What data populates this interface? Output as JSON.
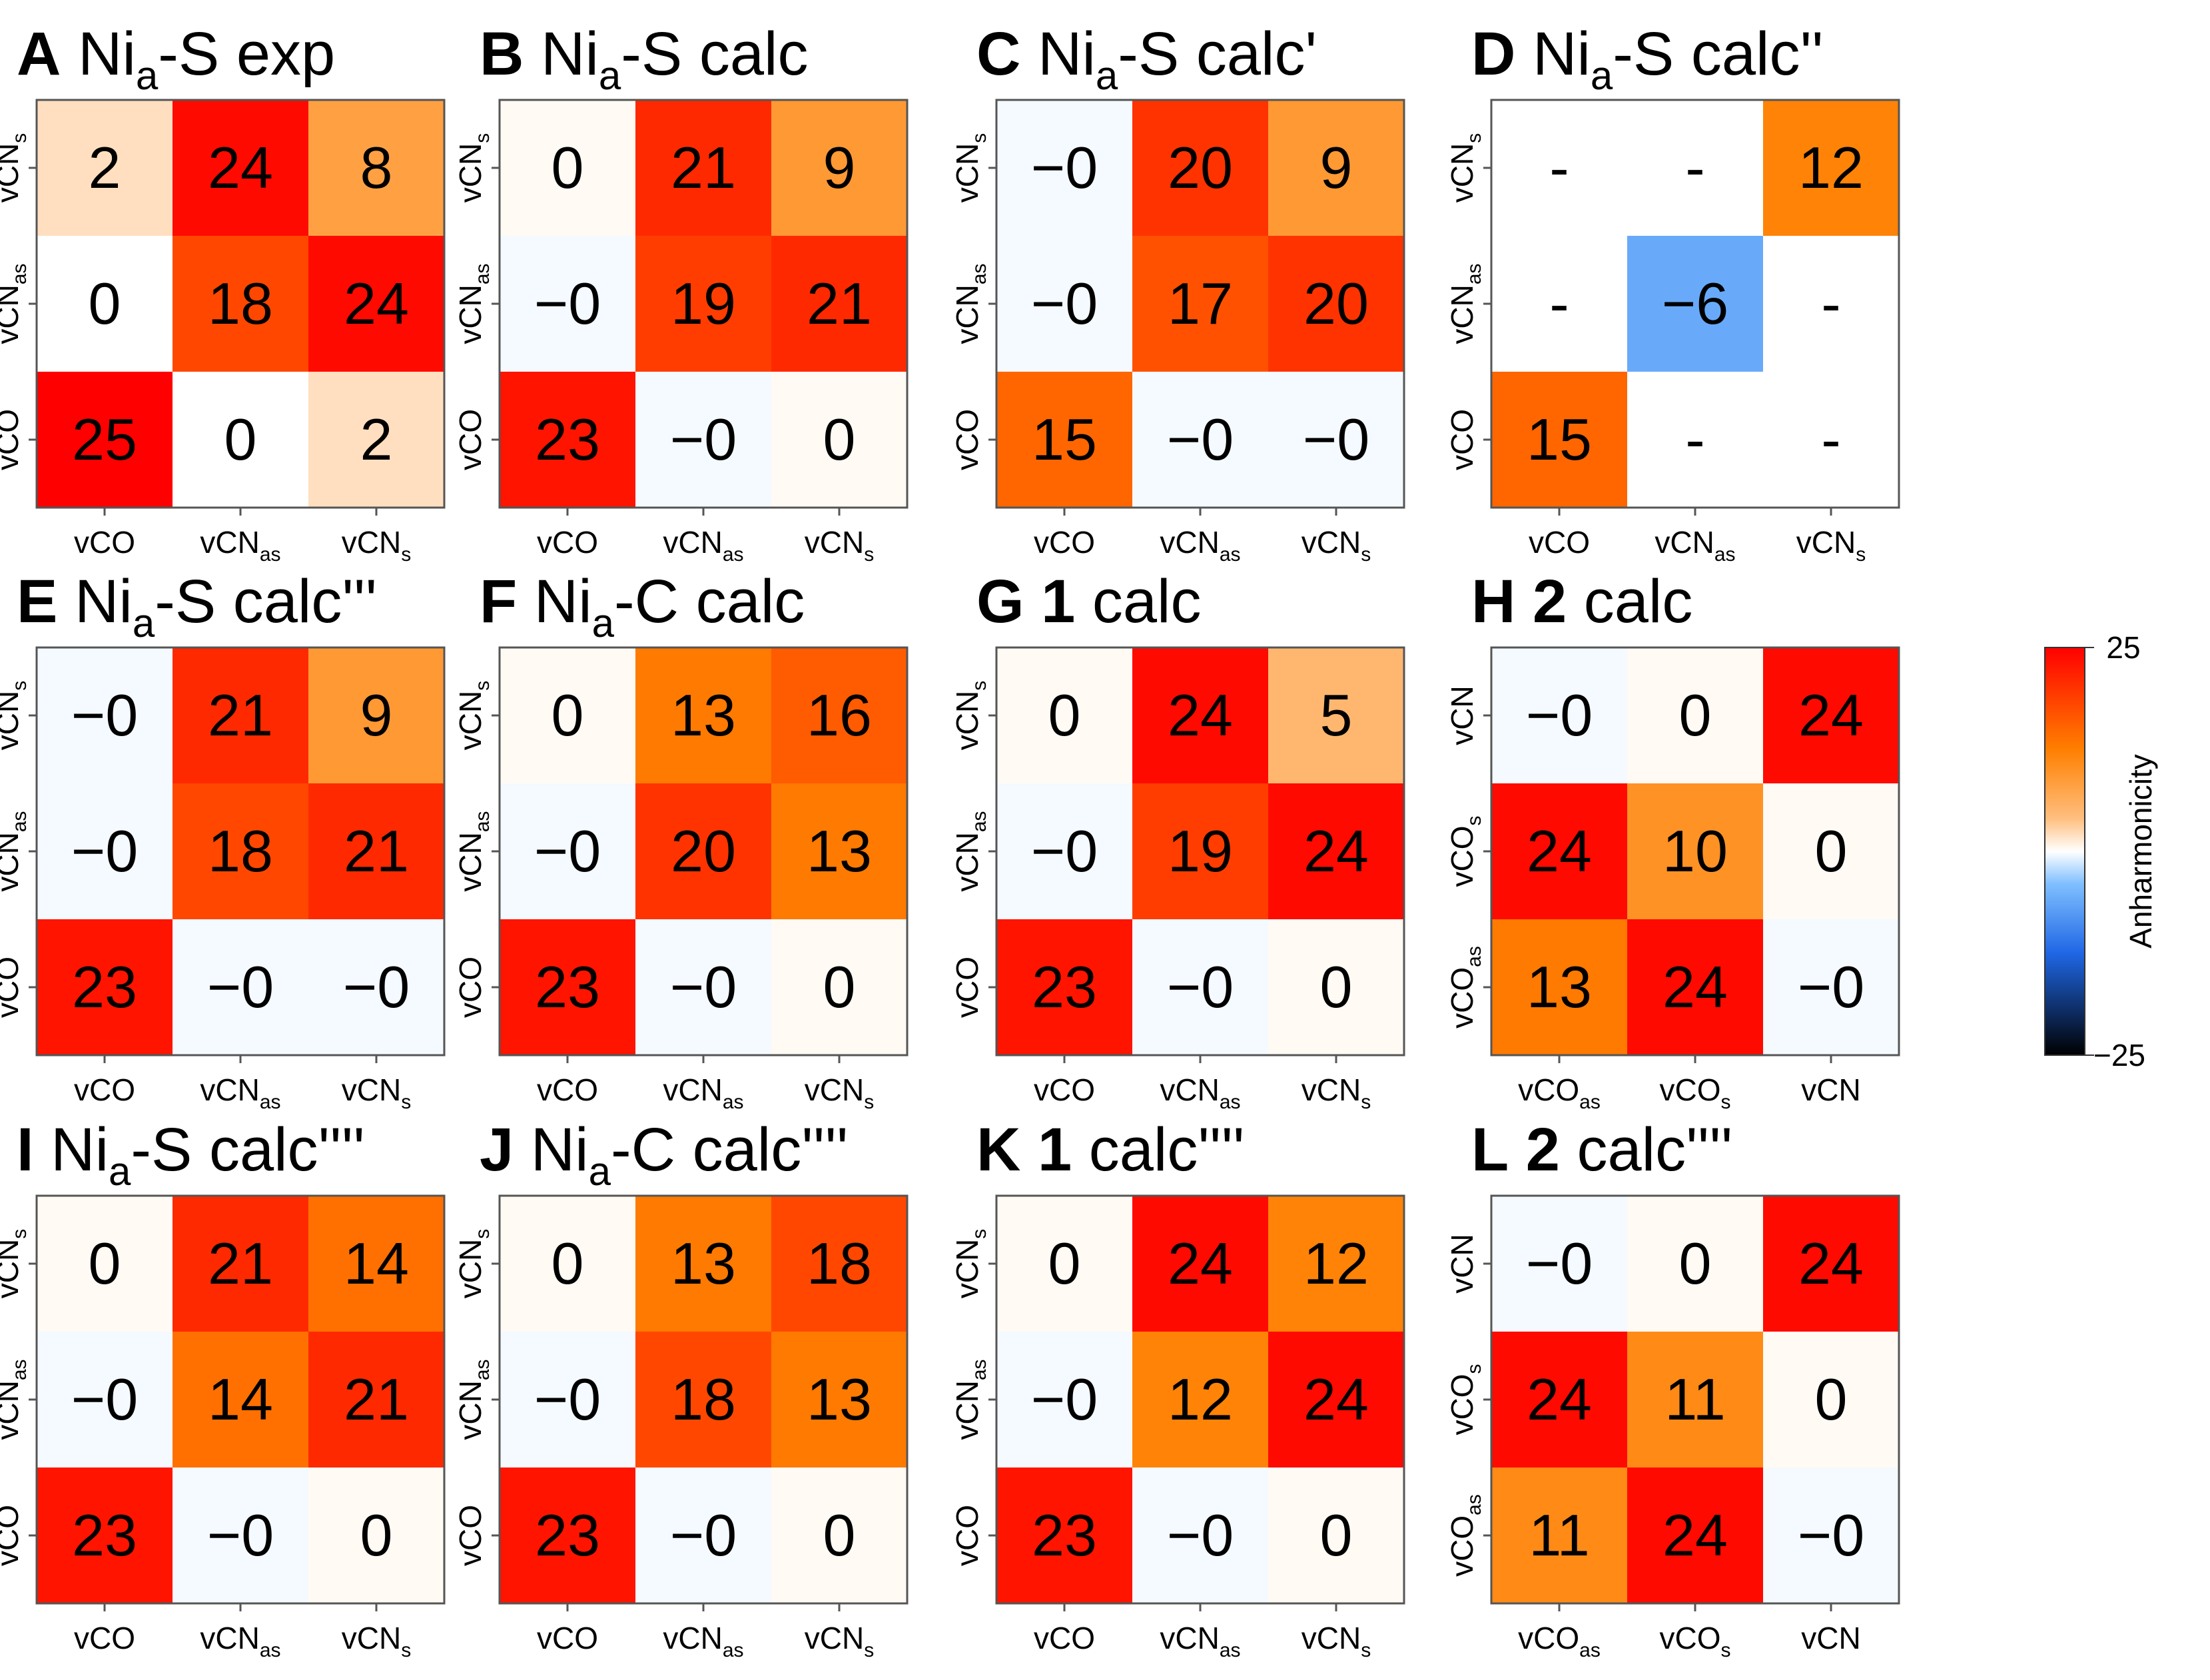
{
  "colorbar": {
    "label": "Anharmonicity",
    "max_label": "25",
    "min_label": "−25",
    "range": [
      -25,
      25
    ],
    "colors": {
      "low": "#000000",
      "mid_low": "#1f66e5",
      "mid_low2": "#7fbfff",
      "center": "#ffffff",
      "mid_high2": "#ffbf7f",
      "mid_high": "#ff7f00",
      "high": "#ff0000"
    }
  },
  "chart_data": [
    {
      "type": "heatmap",
      "letter": "A",
      "title_main": "Ni",
      "title_sub": "a",
      "title_rest": "-S exp",
      "x_labels": [
        [
          "vCO",
          ""
        ],
        [
          "vCN",
          "as"
        ],
        [
          "vCN",
          "s"
        ]
      ],
      "y_labels": [
        [
          "vCO",
          ""
        ],
        [
          "vCN",
          "as"
        ],
        [
          "vCN",
          "s"
        ]
      ],
      "cells": [
        [
          25,
          0,
          2
        ],
        [
          0,
          18,
          24
        ],
        [
          2,
          24,
          8
        ]
      ],
      "text": [
        [
          "25",
          "0",
          "2"
        ],
        [
          "0",
          "18",
          "24"
        ],
        [
          "2",
          "24",
          "8"
        ]
      ]
    },
    {
      "type": "heatmap",
      "letter": "B",
      "title_main": "Ni",
      "title_sub": "a",
      "title_rest": "-S calc",
      "x_labels": [
        [
          "vCO",
          ""
        ],
        [
          "vCN",
          "as"
        ],
        [
          "vCN",
          "s"
        ]
      ],
      "y_labels": [
        [
          "vCO",
          ""
        ],
        [
          "vCN",
          "as"
        ],
        [
          "vCN",
          "s"
        ]
      ],
      "cells": [
        [
          23,
          -0.3,
          0.3
        ],
        [
          -0.3,
          19,
          21
        ],
        [
          0.3,
          21,
          9
        ]
      ],
      "text": [
        [
          "23",
          "−0",
          "0"
        ],
        [
          "−0",
          "19",
          "21"
        ],
        [
          "0",
          "21",
          "9"
        ]
      ]
    },
    {
      "type": "heatmap",
      "letter": "C",
      "title_main": "Ni",
      "title_sub": "a",
      "title_rest": "-S calc'",
      "x_labels": [
        [
          "vCO",
          ""
        ],
        [
          "vCN",
          "as"
        ],
        [
          "vCN",
          "s"
        ]
      ],
      "y_labels": [
        [
          "vCO",
          ""
        ],
        [
          "vCN",
          "as"
        ],
        [
          "vCN",
          "s"
        ]
      ],
      "cells": [
        [
          15,
          -0.3,
          -0.3
        ],
        [
          -0.3,
          17,
          20
        ],
        [
          -0.3,
          20,
          9
        ]
      ],
      "text": [
        [
          "15",
          "−0",
          "−0"
        ],
        [
          "−0",
          "17",
          "20"
        ],
        [
          "−0",
          "20",
          "9"
        ]
      ]
    },
    {
      "type": "heatmap",
      "letter": "D",
      "title_main": "Ni",
      "title_sub": "a",
      "title_rest": "-S calc''",
      "x_labels": [
        [
          "vCO",
          ""
        ],
        [
          "vCN",
          "as"
        ],
        [
          "vCN",
          "s"
        ]
      ],
      "y_labels": [
        [
          "vCO",
          ""
        ],
        [
          "vCN",
          "as"
        ],
        [
          "vCN",
          "s"
        ]
      ],
      "cells": [
        [
          15,
          null,
          null
        ],
        [
          null,
          -6,
          null
        ],
        [
          null,
          null,
          12
        ]
      ],
      "text": [
        [
          "15",
          "-",
          "-"
        ],
        [
          "-",
          "−6",
          "-"
        ],
        [
          "-",
          "-",
          "12"
        ]
      ]
    },
    {
      "type": "heatmap",
      "letter": "E",
      "title_main": "Ni",
      "title_sub": "a",
      "title_rest": "-S calc'''",
      "x_labels": [
        [
          "vCO",
          ""
        ],
        [
          "vCN",
          "as"
        ],
        [
          "vCN",
          "s"
        ]
      ],
      "y_labels": [
        [
          "vCO",
          ""
        ],
        [
          "vCN",
          "as"
        ],
        [
          "vCN",
          "s"
        ]
      ],
      "cells": [
        [
          23,
          -0.3,
          -0.3
        ],
        [
          -0.3,
          18,
          21
        ],
        [
          -0.3,
          21,
          9
        ]
      ],
      "text": [
        [
          "23",
          "−0",
          "−0"
        ],
        [
          "−0",
          "18",
          "21"
        ],
        [
          "−0",
          "21",
          "9"
        ]
      ]
    },
    {
      "type": "heatmap",
      "letter": "F",
      "title_main": "Ni",
      "title_sub": "a",
      "title_rest": "-C calc",
      "x_labels": [
        [
          "vCO",
          ""
        ],
        [
          "vCN",
          "as"
        ],
        [
          "vCN",
          "s"
        ]
      ],
      "y_labels": [
        [
          "vCO",
          ""
        ],
        [
          "vCN",
          "as"
        ],
        [
          "vCN",
          "s"
        ]
      ],
      "cells": [
        [
          23,
          -0.3,
          0.3
        ],
        [
          -0.3,
          20,
          13
        ],
        [
          0.3,
          13,
          16
        ]
      ],
      "text": [
        [
          "23",
          "−0",
          "0"
        ],
        [
          "−0",
          "20",
          "13"
        ],
        [
          "0",
          "13",
          "16"
        ]
      ]
    },
    {
      "type": "heatmap",
      "letter": "G",
      "title_main": "1",
      "title_sub": "",
      "title_rest": " calc",
      "x_labels": [
        [
          "vCO",
          ""
        ],
        [
          "vCN",
          "as"
        ],
        [
          "vCN",
          "s"
        ]
      ],
      "y_labels": [
        [
          "vCO",
          ""
        ],
        [
          "vCN",
          "as"
        ],
        [
          "vCN",
          "s"
        ]
      ],
      "cells": [
        [
          23,
          -0.3,
          0.3
        ],
        [
          -0.3,
          19,
          24
        ],
        [
          0.3,
          24,
          5
        ]
      ],
      "text": [
        [
          "23",
          "−0",
          "0"
        ],
        [
          "−0",
          "19",
          "24"
        ],
        [
          "0",
          "24",
          "5"
        ]
      ]
    },
    {
      "type": "heatmap",
      "letter": "H",
      "title_main": "2",
      "title_sub": "",
      "title_rest": " calc",
      "x_labels": [
        [
          "vCO",
          "as"
        ],
        [
          "vCO",
          "s"
        ],
        [
          "vCN",
          ""
        ]
      ],
      "y_labels": [
        [
          "vCO",
          "as"
        ],
        [
          "vCO",
          "s"
        ],
        [
          "vCN",
          ""
        ]
      ],
      "cells": [
        [
          13,
          24,
          -0.3
        ],
        [
          24,
          10,
          0.3
        ],
        [
          -0.3,
          0.3,
          24
        ]
      ],
      "text": [
        [
          "13",
          "24",
          "−0"
        ],
        [
          "24",
          "10",
          "0"
        ],
        [
          "−0",
          "0",
          "24"
        ]
      ]
    },
    {
      "type": "heatmap",
      "letter": "I",
      "title_main": "Ni",
      "title_sub": "a",
      "title_rest": "-S calc''''",
      "x_labels": [
        [
          "vCO",
          ""
        ],
        [
          "vCN",
          "as"
        ],
        [
          "vCN",
          "s"
        ]
      ],
      "y_labels": [
        [
          "vCO",
          ""
        ],
        [
          "vCN",
          "as"
        ],
        [
          "vCN",
          "s"
        ]
      ],
      "cells": [
        [
          23,
          -0.3,
          0.3
        ],
        [
          -0.3,
          14,
          21
        ],
        [
          0.3,
          21,
          14
        ]
      ],
      "text": [
        [
          "23",
          "−0",
          "0"
        ],
        [
          "−0",
          "14",
          "21"
        ],
        [
          "0",
          "21",
          "14"
        ]
      ]
    },
    {
      "type": "heatmap",
      "letter": "J",
      "title_main": "Ni",
      "title_sub": "a",
      "title_rest": "-C calc''''",
      "x_labels": [
        [
          "vCO",
          ""
        ],
        [
          "vCN",
          "as"
        ],
        [
          "vCN",
          "s"
        ]
      ],
      "y_labels": [
        [
          "vCO",
          ""
        ],
        [
          "vCN",
          "as"
        ],
        [
          "vCN",
          "s"
        ]
      ],
      "cells": [
        [
          23,
          -0.3,
          0.3
        ],
        [
          -0.3,
          18,
          13
        ],
        [
          0.3,
          13,
          18
        ]
      ],
      "text": [
        [
          "23",
          "−0",
          "0"
        ],
        [
          "−0",
          "18",
          "13"
        ],
        [
          "0",
          "13",
          "18"
        ]
      ]
    },
    {
      "type": "heatmap",
      "letter": "K",
      "title_main": "1",
      "title_sub": "",
      "title_rest": " calc''''",
      "x_labels": [
        [
          "vCO",
          ""
        ],
        [
          "vCN",
          "as"
        ],
        [
          "vCN",
          "s"
        ]
      ],
      "y_labels": [
        [
          "vCO",
          ""
        ],
        [
          "vCN",
          "as"
        ],
        [
          "vCN",
          "s"
        ]
      ],
      "cells": [
        [
          23,
          -0.3,
          0.3
        ],
        [
          -0.3,
          12,
          24
        ],
        [
          0.3,
          24,
          12
        ]
      ],
      "text": [
        [
          "23",
          "−0",
          "0"
        ],
        [
          "−0",
          "12",
          "24"
        ],
        [
          "0",
          "24",
          "12"
        ]
      ]
    },
    {
      "type": "heatmap",
      "letter": "L",
      "title_main": "2",
      "title_sub": "",
      "title_rest": " calc''''",
      "x_labels": [
        [
          "vCO",
          "as"
        ],
        [
          "vCO",
          "s"
        ],
        [
          "vCN",
          ""
        ]
      ],
      "y_labels": [
        [
          "vCO",
          "as"
        ],
        [
          "vCO",
          "s"
        ],
        [
          "vCN",
          ""
        ]
      ],
      "cells": [
        [
          11,
          24,
          -0.3
        ],
        [
          24,
          11,
          0.3
        ],
        [
          -0.3,
          0.3,
          24
        ]
      ],
      "text": [
        [
          "11",
          "24",
          "−0"
        ],
        [
          "24",
          "11",
          "0"
        ],
        [
          "−0",
          "0",
          "24"
        ]
      ]
    }
  ]
}
